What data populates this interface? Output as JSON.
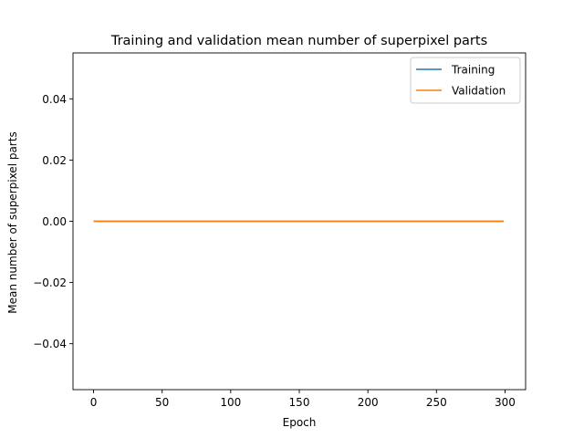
{
  "chart_data": {
    "type": "line",
    "title": "Training and validation mean number of superpixel parts",
    "xlabel": "Epoch",
    "ylabel": "Mean number of superpixel parts",
    "xlim": [
      -15,
      315
    ],
    "ylim": [
      -0.055,
      0.055
    ],
    "xticks": [
      0,
      50,
      100,
      150,
      200,
      250,
      300
    ],
    "yticks": [
      -0.04,
      -0.02,
      0.0,
      0.02,
      0.04
    ],
    "ytick_labels": [
      "−0.04",
      "−0.02",
      "0.00",
      "0.02",
      "0.04"
    ],
    "grid": false,
    "legend_position": "top-right",
    "series": [
      {
        "name": "Training",
        "color": "#1f77b4",
        "x": [
          0,
          299
        ],
        "y": [
          0,
          0
        ]
      },
      {
        "name": "Validation",
        "color": "#ff7f0e",
        "x": [
          0,
          299
        ],
        "y": [
          0,
          0
        ]
      }
    ]
  }
}
